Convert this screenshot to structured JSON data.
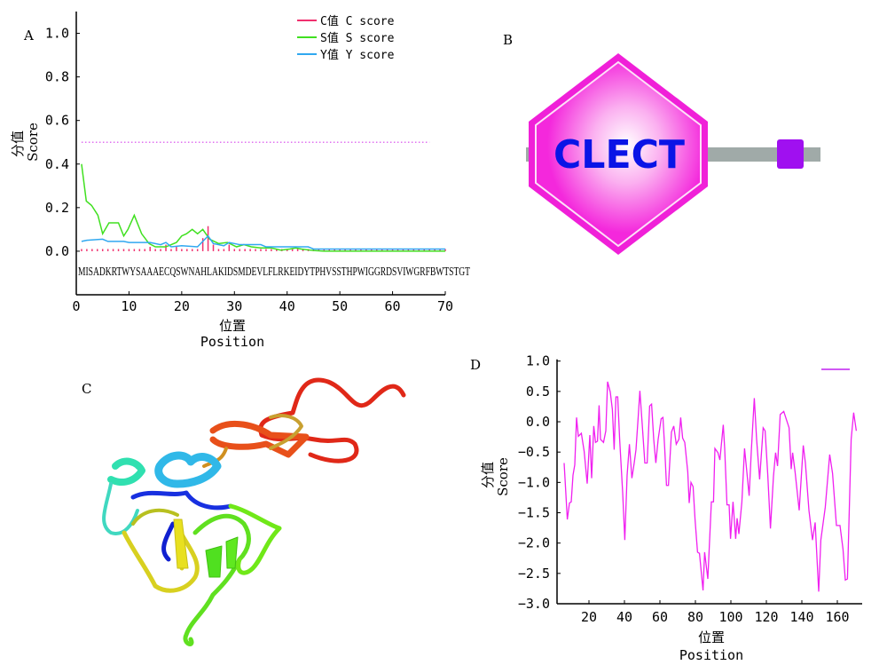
{
  "chart_data": [
    {
      "panel": "A",
      "type": "line",
      "xlabel_cn": "位置",
      "xlabel": "Position",
      "ylabel_cn": "分值",
      "ylabel": "Score",
      "xlim": [
        0,
        70
      ],
      "ylim": [
        -0.2,
        1.1
      ],
      "xticks": [
        0,
        10,
        20,
        30,
        40,
        50,
        60,
        70
      ],
      "yticks": [
        "0.0",
        "0.2",
        "0.4",
        "0.6",
        "0.8",
        "1.0"
      ],
      "legend_position": "top-right",
      "threshold": {
        "y": 0.5,
        "x_range": [
          1,
          67
        ],
        "color": "#e070f0",
        "style": "dotted"
      },
      "sequence": "MISADKRTWYSAAAECQSWNAHLAKIDSMDEVLFLRKEIDYTPHVSSTHPWIGGRDSVIWGRFBWTSTGT",
      "series": [
        {
          "name": "C值 C score",
          "color": "#f0306e",
          "style": "bars",
          "default": 0.01,
          "x": [
            14,
            17,
            19,
            24,
            25,
            26,
            29
          ],
          "y": [
            0.02,
            0.03,
            0.02,
            0.06,
            0.115,
            0.03,
            0.03
          ]
        },
        {
          "name": "S值 S score",
          "color": "#40e020",
          "style": "line",
          "x": [
            1,
            1.9,
            2.9,
            4.1,
            5,
            6.2,
            8,
            9,
            9.8,
            11,
            12.4,
            13.8,
            15,
            17,
            19,
            20,
            20.9,
            22,
            23,
            24,
            25.3,
            27,
            28.7,
            30.4,
            31.8,
            33.2,
            35,
            37,
            38.8,
            40.5,
            41.6,
            42.7,
            45,
            47,
            70
          ],
          "y": [
            0.4,
            0.23,
            0.21,
            0.165,
            0.08,
            0.13,
            0.13,
            0.07,
            0.1,
            0.165,
            0.08,
            0.035,
            0.02,
            0.02,
            0.04,
            0.07,
            0.08,
            0.1,
            0.08,
            0.1,
            0.055,
            0.035,
            0.04,
            0.02,
            0.03,
            0.02,
            0.015,
            0.015,
            0.005,
            0.01,
            0.015,
            0.01,
            0.003,
            0,
            0
          ]
        },
        {
          "name": "Y值 Y score",
          "color": "#30a8f0",
          "style": "line",
          "x": [
            1,
            2,
            5,
            6,
            9,
            10,
            14,
            16,
            17,
            18,
            20,
            23,
            25,
            26,
            28,
            29,
            31,
            35,
            36,
            40,
            44,
            45,
            70
          ],
          "y": [
            0.045,
            0.05,
            0.055,
            0.045,
            0.045,
            0.04,
            0.04,
            0.03,
            0.04,
            0.02,
            0.025,
            0.02,
            0.07,
            0.035,
            0.025,
            0.04,
            0.03,
            0.03,
            0.02,
            0.02,
            0.02,
            0.01,
            0.01
          ]
        }
      ]
    },
    {
      "panel": "B",
      "type": "domain-diagram",
      "domain_label": "CLECT",
      "colors": {
        "domain": "#f020d8",
        "backbone": "#a0aaa8",
        "segment": "#a010f0",
        "text": "#0a14e6"
      }
    },
    {
      "panel": "C",
      "type": "structure-image"
    },
    {
      "panel": "D",
      "type": "line",
      "xlabel_cn": "位置",
      "xlabel": "Position",
      "ylabel_cn": "分值",
      "ylabel": "Score",
      "xlim": [
        2,
        174
      ],
      "ylim": [
        -3.0,
        1.0
      ],
      "xticks": [
        20,
        40,
        60,
        80,
        100,
        120,
        140,
        160
      ],
      "yticks": [
        "-3.0",
        "-2.5",
        "-2.0",
        "-1.5",
        "-1.0",
        "-0.5",
        "0.0",
        "0.5",
        "1.0"
      ],
      "legend_position": "top-right",
      "series": [
        {
          "color": "#f020f0",
          "x": [
            6,
            7.8,
            9,
            10,
            11,
            12,
            13,
            14,
            15.7,
            17.3,
            19,
            20.5,
            21.5,
            22.7,
            23.7,
            24.8,
            25.7,
            26.5,
            28.2,
            29.5,
            30.5,
            32,
            33.2,
            34.2,
            35.2,
            36.2,
            37.3,
            39,
            40.2,
            41.5,
            42.8,
            44.2,
            45.5,
            46.5,
            47.8,
            48.7,
            49.8,
            51.5,
            52.8,
            54.2,
            55.3,
            56.5,
            57.7,
            59,
            60.7,
            61.7,
            62.7,
            63.7,
            64.8,
            66.5,
            67.8,
            69.2,
            70.7,
            71.7,
            72.8,
            74,
            75.7,
            76.5,
            77.5,
            78.7,
            79.8,
            81.2,
            82.3,
            84.3,
            85.2,
            87,
            89,
            90.2,
            91,
            92.7,
            93.8,
            95.7,
            96.5,
            97.8,
            99,
            99.8,
            101.2,
            102.7,
            103.5,
            104.5,
            106.2,
            107.7,
            109,
            110.3,
            111.5,
            113.2,
            114.5,
            116.2,
            118.2,
            119.3,
            120.8,
            122.3,
            124,
            125.2,
            126.3,
            127.8,
            129.8,
            132.8,
            134,
            134.8,
            136.2,
            138.5,
            140.8,
            142,
            144,
            146,
            147.5,
            149.5,
            150.7,
            153.2,
            155.7,
            157.3,
            159.5,
            161.5,
            163.2,
            164.5,
            165.7,
            167.8,
            169.2,
            170.7
          ],
          "y": [
            -0.68,
            -1.61,
            -1.34,
            -1.32,
            -0.88,
            -0.71,
            0.07,
            -0.24,
            -0.19,
            -0.49,
            -1.02,
            -0.22,
            -0.93,
            -0.07,
            -0.34,
            -0.32,
            0.27,
            -0.29,
            -0.34,
            -0.15,
            0.66,
            0.49,
            0.2,
            -0.46,
            0.41,
            0.41,
            -0.29,
            -1.17,
            -1.95,
            -0.88,
            -0.37,
            -0.93,
            -0.68,
            -0.46,
            0.1,
            0.51,
            0.05,
            -0.68,
            -0.68,
            0.26,
            0.29,
            -0.29,
            -0.68,
            -0.29,
            0.05,
            0.07,
            -0.44,
            -1.05,
            -1.05,
            -0.17,
            -0.07,
            -0.37,
            -0.29,
            0.07,
            -0.27,
            -0.34,
            -0.83,
            -1.34,
            -1.0,
            -1.07,
            -1.61,
            -2.15,
            -2.17,
            -2.78,
            -2.15,
            -2.59,
            -1.32,
            -1.32,
            -0.44,
            -0.51,
            -0.63,
            -0.05,
            -0.44,
            -1.37,
            -1.37,
            -1.93,
            -1.32,
            -1.93,
            -1.59,
            -1.85,
            -1.32,
            -0.44,
            -0.83,
            -1.22,
            -0.49,
            0.39,
            -0.29,
            -0.95,
            -0.1,
            -0.15,
            -0.88,
            -1.76,
            -0.9,
            -0.51,
            -0.73,
            0.12,
            0.17,
            -0.1,
            -0.78,
            -0.51,
            -0.83,
            -1.46,
            -0.39,
            -0.68,
            -1.46,
            -1.95,
            -1.66,
            -2.8,
            -1.95,
            -1.41,
            -0.54,
            -0.85,
            -1.71,
            -1.71,
            -2.1,
            -2.61,
            -2.59,
            -0.29,
            0.15,
            -0.15
          ]
        }
      ]
    }
  ],
  "labels": {
    "a": "A",
    "b": "B",
    "c": "C",
    "d": "D"
  }
}
